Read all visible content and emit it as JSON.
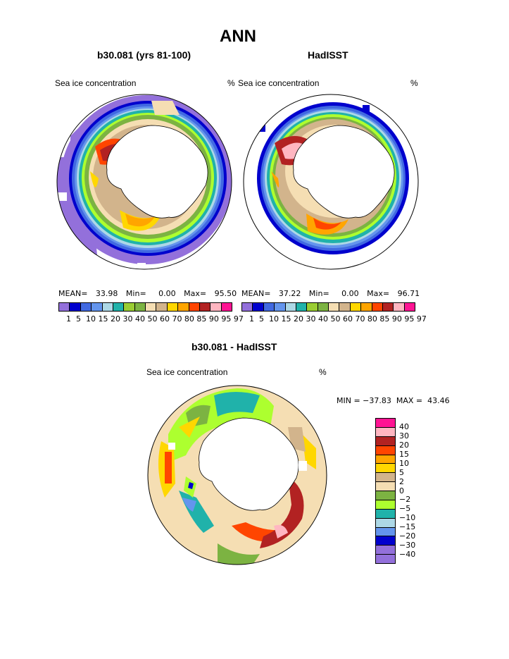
{
  "figure": {
    "season": "ANN",
    "palette_ice": [
      "#9370db",
      "#0000cd",
      "#4169e1",
      "#6495ed",
      "#add8e6",
      "#20b2aa",
      "#9acd32",
      "#7cb342",
      "#f5deb3",
      "#d2b48c",
      "#ffd700",
      "#ffa500",
      "#ff4500",
      "#b22222",
      "#ffb6c1",
      "#ff1493"
    ],
    "palette_diff": [
      "#ff1493",
      "#ffb6c1",
      "#b22222",
      "#ff4500",
      "#ffa500",
      "#ffd700",
      "#d2b48c",
      "#f5deb3",
      "#7cb342",
      "#adff2f",
      "#20b2aa",
      "#add8e6",
      "#6495ed",
      "#0000cd",
      "#9370db"
    ]
  },
  "panels": [
    {
      "title": "b30.081 (yrs 81-100)",
      "left_label": "Sea ice concentration",
      "right_label": "%",
      "stats": {
        "mean_label": "MEAN=",
        "mean": "33.98",
        "min_label": "Min=",
        "min": "0.00",
        "max_label": "Max=",
        "max": "95.50"
      },
      "colorbar_labels": "1  5  10 15 20 30 40 50 60 70 80 85 90 95 97"
    },
    {
      "title": "HadISST",
      "left_label": "Sea ice concentration",
      "right_label": "%",
      "stats": {
        "mean_label": "MEAN=",
        "mean": "37.22",
        "min_label": "Min=",
        "min": "0.00",
        "max_label": "Max=",
        "max": "96.71"
      },
      "colorbar_labels": "1  5  10 15 20 30 40 50 60 70 80 85 90 95 97"
    }
  ],
  "difference": {
    "title": "b30.081 - HadISST",
    "left_label": "Sea ice concentration",
    "right_label": "%",
    "minmax": "MIN = −37.83  MAX =  43.46",
    "levels": [
      "40",
      "30",
      "20",
      "15",
      "10",
      "5",
      "2",
      "0",
      "−2",
      "−5",
      "−10",
      "−15",
      "−20",
      "−30",
      "−40"
    ]
  }
}
